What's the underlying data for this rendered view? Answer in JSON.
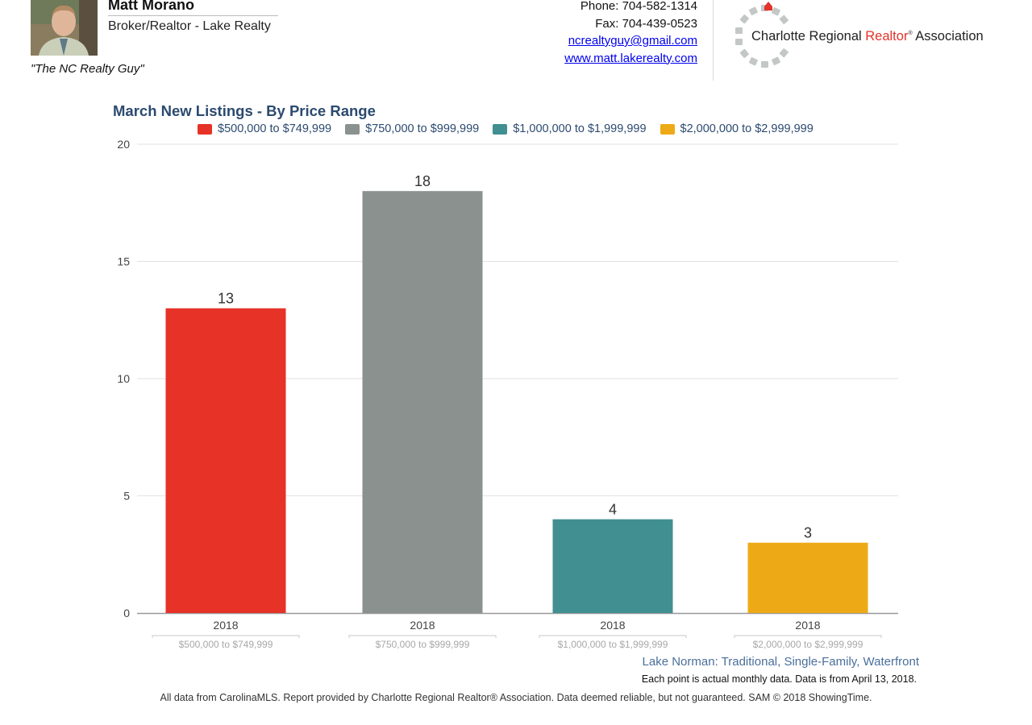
{
  "header": {
    "agent_name": "Matt Morano",
    "agent_title": "Broker/Realtor - Lake Realty",
    "tagline": "\"The NC Realty Guy\"",
    "phone": "Phone: 704-582-1314",
    "fax": "Fax: 704-439-0523",
    "email": "ncrealtyguy@gmail.com",
    "website": "www.matt.lakerealty.com",
    "association_name_pre": "Charlotte Regional ",
    "association_name_red": "Realtor",
    "association_reg": "®",
    "association_name_post": " Association"
  },
  "colors": {
    "title": "#2b4a6f",
    "grid": "#e2e2e2",
    "axis": "#999999",
    "region": "#4a6f9a"
  },
  "chart_data": {
    "type": "bar",
    "title": "March New Listings - By Price Range",
    "ylim": [
      0,
      20
    ],
    "yticks": [
      0,
      5,
      10,
      15,
      20
    ],
    "grid": true,
    "legend_position": "top",
    "categories": [
      "2018",
      "2018",
      "2018",
      "2018"
    ],
    "group_labels": [
      "$500,000 to $749,999",
      "$750,000 to $999,999",
      "$1,000,000 to $1,999,999",
      "$2,000,000 to $2,999,999"
    ],
    "series": [
      {
        "name": "$500,000 to $749,999",
        "value": 13,
        "color": "#e63227"
      },
      {
        "name": "$750,000 to $999,999",
        "value": 18,
        "color": "#8a918f"
      },
      {
        "name": "$1,000,000 to $1,999,999",
        "value": 4,
        "color": "#418f90"
      },
      {
        "name": "$2,000,000 to $2,999,999",
        "value": 3,
        "color": "#eeaa16"
      }
    ]
  },
  "footer": {
    "region": "Lake Norman: Traditional, Single-Family, Waterfront",
    "note": "Each point is actual monthly data. Data is from April 13, 2018.",
    "disclaimer": "All data from CarolinaMLS. Report provided by Charlotte Regional Realtor® Association. Data deemed reliable, but not guaranteed. SAM © 2018 ShowingTime."
  }
}
